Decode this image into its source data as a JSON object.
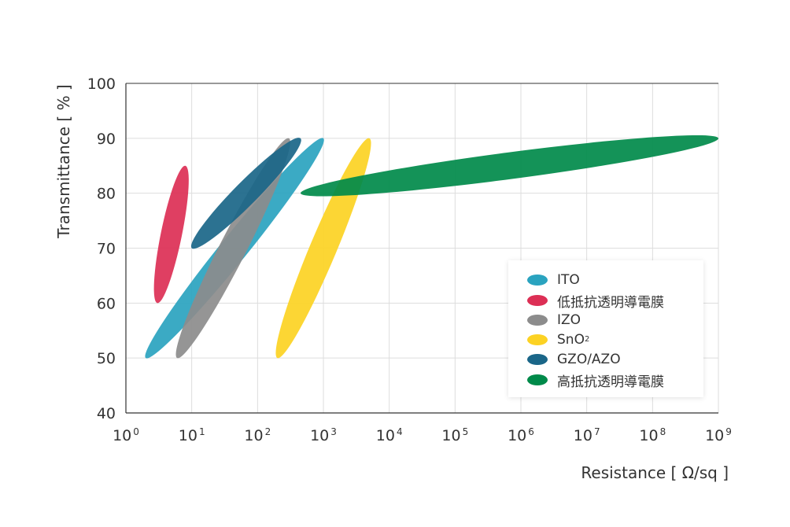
{
  "chart_data": {
    "type": "scatter",
    "title": "",
    "xlabel": "Resistance [ Ω/sq ]",
    "ylabel": "Transmittance [ % ]",
    "xscale": "log10",
    "xlim": [
      1,
      1000000000
    ],
    "ylim": [
      40,
      100
    ],
    "x_tick_labels": [
      {
        "base": "10",
        "exp": "0"
      },
      {
        "base": "10",
        "exp": "1"
      },
      {
        "base": "10",
        "exp": "2"
      },
      {
        "base": "10",
        "exp": "3"
      },
      {
        "base": "10",
        "exp": "4"
      },
      {
        "base": "10",
        "exp": "5"
      },
      {
        "base": "10",
        "exp": "6"
      },
      {
        "base": "10",
        "exp": "7"
      },
      {
        "base": "10",
        "exp": "8"
      },
      {
        "base": "10",
        "exp": "9"
      }
    ],
    "y_ticks": [
      40,
      50,
      60,
      70,
      80,
      90,
      100
    ],
    "grid": true,
    "legend_position": "bottom-right",
    "series": [
      {
        "name": "ITO",
        "color": "#2aa3bf",
        "region": {
          "from": {
            "x": 2,
            "y": 50
          },
          "to": {
            "x": 1000,
            "y": 90
          }
        }
      },
      {
        "name": "低抵抗透明導電膜",
        "color": "#dc2f55",
        "region": {
          "from": {
            "x": 3,
            "y": 60
          },
          "to": {
            "x": 8,
            "y": 85
          }
        }
      },
      {
        "name": "IZO",
        "color": "#8c8c8c",
        "region": {
          "from": {
            "x": 6,
            "y": 50
          },
          "to": {
            "x": 300,
            "y": 90
          }
        }
      },
      {
        "name": "SnO2",
        "name_base": "SnO",
        "name_sub": "2",
        "color": "#fcd223",
        "region": {
          "from": {
            "x": 200,
            "y": 50
          },
          "to": {
            "x": 5000,
            "y": 90
          }
        }
      },
      {
        "name": "GZO/AZO",
        "color": "#1a6688",
        "region": {
          "from": {
            "x": 10,
            "y": 70
          },
          "to": {
            "x": 450,
            "y": 90
          }
        }
      },
      {
        "name": "高抵抗透明導電膜",
        "color": "#008a4a",
        "region": {
          "from": {
            "x": 450,
            "y": 80
          },
          "to": {
            "x": 1000000000,
            "y": 90
          }
        }
      }
    ]
  }
}
